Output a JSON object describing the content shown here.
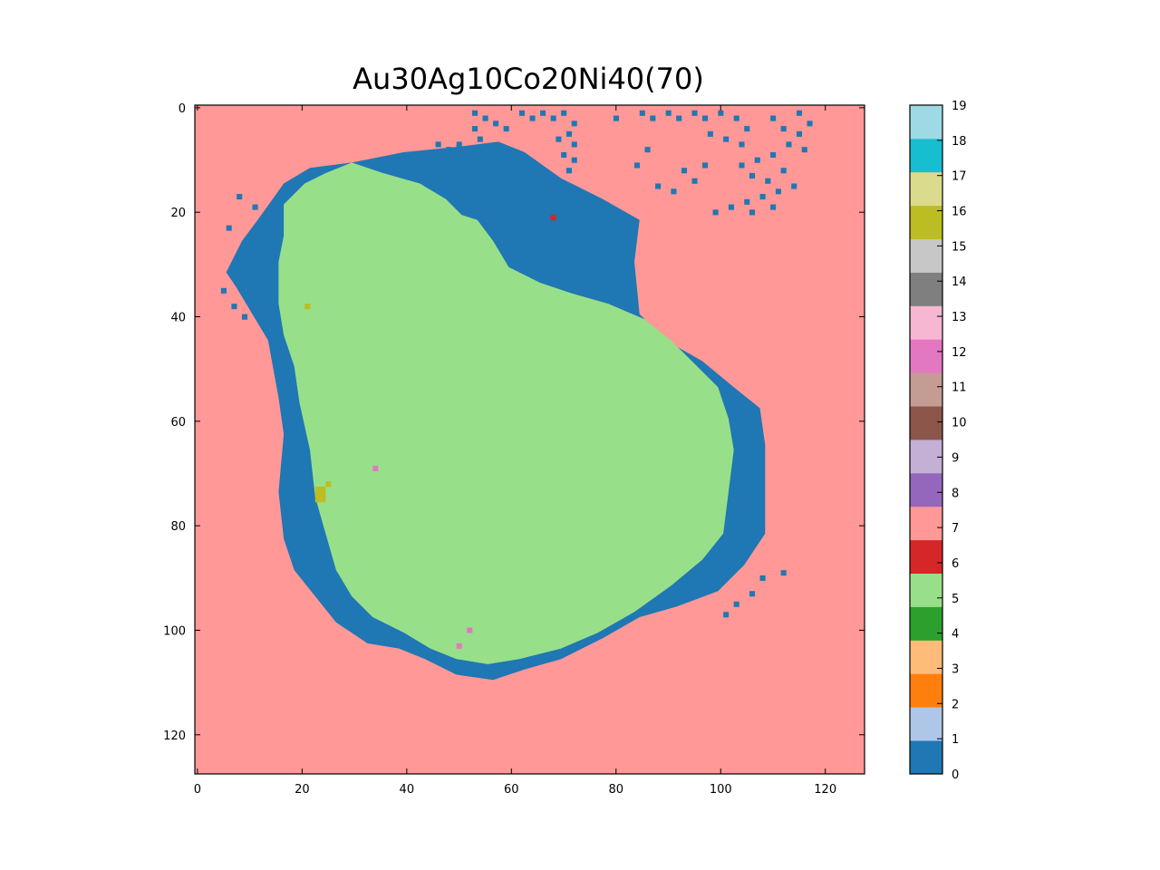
{
  "chart_data": {
    "type": "heatmap",
    "title": "Au30Ag10Co20Ni40(70)",
    "grid": false,
    "xlim": [
      0,
      128
    ],
    "ylim": [
      128,
      0
    ],
    "xticks": [
      0,
      20,
      40,
      60,
      80,
      100,
      120
    ],
    "yticks": [
      0,
      20,
      40,
      60,
      80,
      100,
      120
    ],
    "colorbar": {
      "position": "right",
      "range": [
        0,
        19
      ],
      "ticks": [
        0,
        1,
        2,
        3,
        4,
        5,
        6,
        7,
        8,
        9,
        10,
        11,
        12,
        13,
        14,
        15,
        16,
        17,
        18,
        19
      ],
      "colors": [
        "#1f77b4",
        "#aec7e8",
        "#ff7f0e",
        "#ffbb78",
        "#2ca02c",
        "#98df8a",
        "#d62728",
        "#ff9896",
        "#9467bd",
        "#c5b0d5",
        "#8c564b",
        "#c49c94",
        "#e377c2",
        "#f7b6d2",
        "#7f7f7f",
        "#c7c7c7",
        "#bcbd22",
        "#dbdb8d",
        "#17becf",
        "#9edae5"
      ]
    },
    "grid_size": [
      128,
      128
    ],
    "background_value": 7,
    "regions": [
      {
        "value": 0,
        "outline_xy": [
          [
            17,
            15
          ],
          [
            22,
            12
          ],
          [
            30,
            11
          ],
          [
            40,
            9
          ],
          [
            50,
            8
          ],
          [
            58,
            7
          ],
          [
            63,
            9
          ],
          [
            70,
            14
          ],
          [
            78,
            18
          ],
          [
            85,
            22
          ],
          [
            84,
            30
          ],
          [
            85,
            40
          ],
          [
            90,
            45
          ],
          [
            97,
            49
          ],
          [
            103,
            54
          ],
          [
            108,
            58
          ],
          [
            109,
            65
          ],
          [
            109,
            75
          ],
          [
            109,
            82
          ],
          [
            105,
            88
          ],
          [
            100,
            93
          ],
          [
            92,
            96
          ],
          [
            85,
            98
          ],
          [
            78,
            102
          ],
          [
            70,
            106
          ],
          [
            63,
            108
          ],
          [
            57,
            110
          ],
          [
            50,
            109
          ],
          [
            44,
            106
          ],
          [
            39,
            104
          ],
          [
            33,
            103
          ],
          [
            27,
            99
          ],
          [
            23,
            94
          ],
          [
            19,
            89
          ],
          [
            17,
            83
          ],
          [
            16,
            74
          ],
          [
            17,
            63
          ],
          [
            16,
            56
          ],
          [
            14,
            45
          ],
          [
            11,
            40
          ],
          [
            8,
            35
          ],
          [
            6,
            32
          ],
          [
            9,
            26
          ],
          [
            12,
            22
          ]
        ]
      },
      {
        "value": 5,
        "outline_xy": [
          [
            17,
            44
          ],
          [
            16,
            38
          ],
          [
            16,
            30
          ],
          [
            17,
            25
          ],
          [
            17,
            19
          ],
          [
            21,
            15
          ],
          [
            25,
            13
          ],
          [
            30,
            11
          ],
          [
            36,
            13
          ],
          [
            43,
            15
          ],
          [
            48,
            18
          ],
          [
            51,
            21
          ],
          [
            54,
            22
          ],
          [
            57,
            26
          ],
          [
            60,
            31
          ],
          [
            66,
            34
          ],
          [
            72,
            36
          ],
          [
            79,
            38
          ],
          [
            86,
            41
          ],
          [
            91,
            45
          ],
          [
            95,
            49
          ],
          [
            100,
            54
          ],
          [
            102,
            60
          ],
          [
            103,
            66
          ],
          [
            102,
            74
          ],
          [
            101,
            82
          ],
          [
            97,
            87
          ],
          [
            91,
            92
          ],
          [
            84,
            97
          ],
          [
            77,
            101
          ],
          [
            70,
            104
          ],
          [
            62,
            106
          ],
          [
            56,
            107
          ],
          [
            50,
            106
          ],
          [
            45,
            104
          ],
          [
            40,
            101
          ],
          [
            34,
            98
          ],
          [
            30,
            94
          ],
          [
            27,
            89
          ],
          [
            25,
            82
          ],
          [
            23,
            75
          ],
          [
            22,
            66
          ],
          [
            20,
            57
          ],
          [
            19,
            50
          ]
        ]
      },
      {
        "value": 16,
        "outline_xy": [
          [
            23,
            73
          ],
          [
            25,
            73
          ],
          [
            25,
            76
          ],
          [
            23,
            76
          ]
        ]
      }
    ],
    "speckles_value_0": [
      [
        53,
        1
      ],
      [
        55,
        2
      ],
      [
        57,
        3
      ],
      [
        53,
        4
      ],
      [
        59,
        4
      ],
      [
        62,
        1
      ],
      [
        64,
        2
      ],
      [
        66,
        1
      ],
      [
        68,
        2
      ],
      [
        70,
        1
      ],
      [
        72,
        3
      ],
      [
        71,
        5
      ],
      [
        69,
        6
      ],
      [
        72,
        7
      ],
      [
        70,
        9
      ],
      [
        72,
        10
      ],
      [
        71,
        12
      ],
      [
        46,
        7
      ],
      [
        48,
        8
      ],
      [
        50,
        7
      ],
      [
        52,
        8
      ],
      [
        54,
        6
      ],
      [
        56,
        8
      ],
      [
        80,
        2
      ],
      [
        85,
        1
      ],
      [
        87,
        2
      ],
      [
        90,
        1
      ],
      [
        92,
        2
      ],
      [
        95,
        1
      ],
      [
        97,
        2
      ],
      [
        100,
        1
      ],
      [
        103,
        2
      ],
      [
        105,
        4
      ],
      [
        98,
        5
      ],
      [
        101,
        6
      ],
      [
        104,
        7
      ],
      [
        110,
        2
      ],
      [
        115,
        1
      ],
      [
        117,
        3
      ],
      [
        112,
        4
      ],
      [
        115,
        5
      ],
      [
        113,
        7
      ],
      [
        116,
        8
      ],
      [
        110,
        9
      ],
      [
        107,
        10
      ],
      [
        104,
        11
      ],
      [
        106,
        13
      ],
      [
        109,
        14
      ],
      [
        112,
        12
      ],
      [
        114,
        15
      ],
      [
        111,
        16
      ],
      [
        108,
        17
      ],
      [
        105,
        18
      ],
      [
        102,
        19
      ],
      [
        99,
        20
      ],
      [
        106,
        20
      ],
      [
        110,
        19
      ],
      [
        95,
        14
      ],
      [
        97,
        11
      ],
      [
        93,
        12
      ],
      [
        91,
        16
      ],
      [
        88,
        15
      ],
      [
        86,
        8
      ],
      [
        84,
        11
      ],
      [
        8,
        17
      ],
      [
        11,
        19
      ],
      [
        13,
        21
      ],
      [
        6,
        23
      ],
      [
        5,
        35
      ],
      [
        7,
        38
      ],
      [
        9,
        40
      ],
      [
        112,
        89
      ],
      [
        108,
        90
      ],
      [
        106,
        93
      ],
      [
        103,
        95
      ],
      [
        101,
        97
      ]
    ],
    "speckles_other": [
      {
        "value": 16,
        "xy": [
          [
            21,
            38
          ],
          [
            25,
            72
          ]
        ]
      },
      {
        "value": 12,
        "xy": [
          [
            34,
            69
          ],
          [
            52,
            100
          ],
          [
            50,
            103
          ]
        ]
      },
      {
        "value": 6,
        "xy": [
          [
            68,
            21
          ]
        ]
      }
    ]
  }
}
